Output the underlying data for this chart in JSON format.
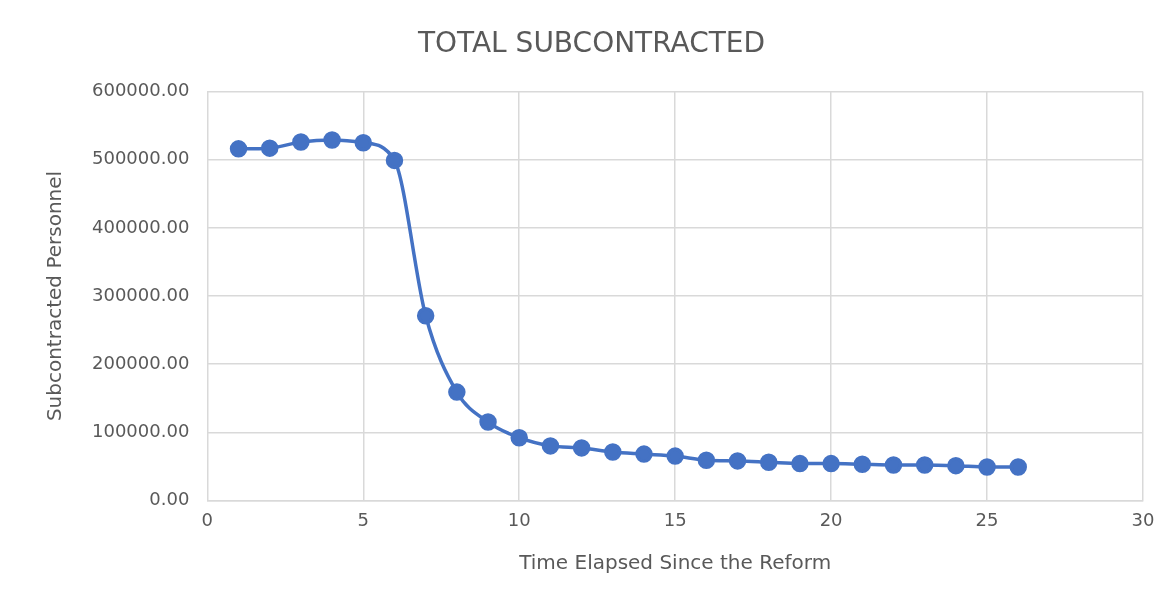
{
  "chart_data": {
    "type": "line",
    "title": "TOTAL SUBCONTRACTED",
    "xlabel": "Time Elapsed Since the Reform",
    "ylabel": "Subcontracted Personnel",
    "x": [
      1,
      2,
      3,
      4,
      5,
      6,
      7,
      8,
      9,
      10,
      11,
      12,
      13,
      14,
      15,
      16,
      17,
      18,
      19,
      20,
      21,
      22,
      23,
      24,
      25,
      26
    ],
    "series": [
      {
        "color": "#4472c4",
        "values": [
          516000,
          517000,
          526000,
          529000,
          525000,
          499000,
          271000,
          159000,
          115000,
          92000,
          80000,
          77000,
          71000,
          68000,
          65000,
          59000,
          58000,
          56000,
          54000,
          54000,
          53000,
          52000,
          52000,
          51000,
          49000,
          49000
        ]
      }
    ],
    "xlim": [
      0,
      30
    ],
    "xticks": [
      0,
      5,
      10,
      15,
      20,
      25,
      30
    ],
    "ylim": [
      0,
      600000
    ],
    "yticks": [
      {
        "value": 0,
        "label": "0.00"
      },
      {
        "value": 100000,
        "label": "100000.00"
      },
      {
        "value": 200000,
        "label": "200000.00"
      },
      {
        "value": 300000,
        "label": "300000.00"
      },
      {
        "value": 400000,
        "label": "400000.00"
      },
      {
        "value": 500000,
        "label": "500000.00"
      },
      {
        "value": 600000,
        "label": "600000.00"
      }
    ],
    "grid": true,
    "marker": "circle",
    "line_style": "solid",
    "legend": false
  }
}
